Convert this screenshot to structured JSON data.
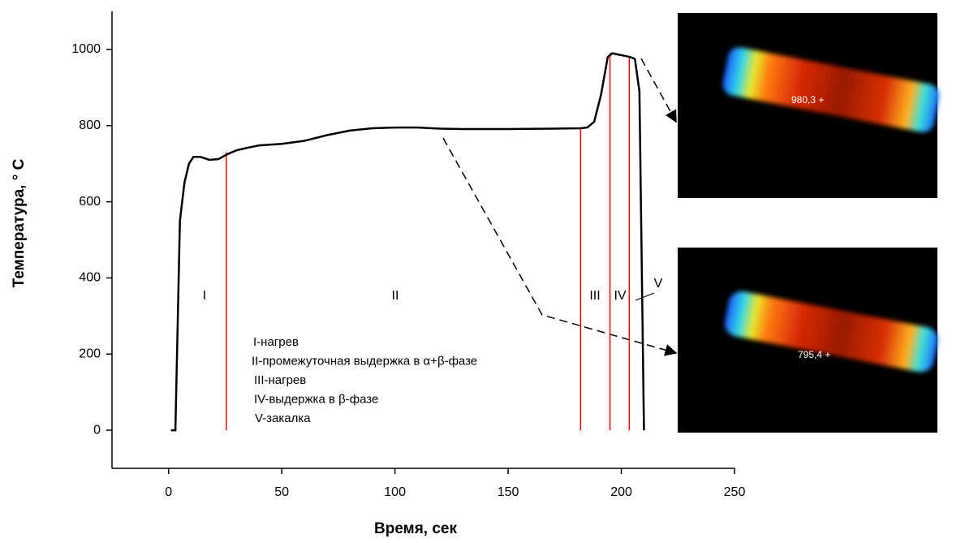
{
  "chart_data": {
    "type": "line",
    "xlabel": "Время, сек",
    "ylabel": "Температура, ° С",
    "xlim": [
      -25,
      250
    ],
    "xticks": [
      0,
      50,
      100,
      150,
      200,
      250
    ],
    "ylim": [
      -100,
      1100
    ],
    "yticks": [
      0,
      200,
      400,
      600,
      800,
      1000
    ],
    "color": "#000000",
    "x": [
      1,
      3,
      5,
      7,
      9,
      11,
      14,
      18,
      22,
      26,
      30,
      35,
      40,
      50,
      60,
      70,
      80,
      90,
      100,
      110,
      120,
      130,
      150,
      170,
      182,
      185,
      188,
      191,
      194,
      196,
      200,
      204,
      206,
      208,
      210
    ],
    "values": [
      0,
      0,
      550,
      650,
      700,
      718,
      718,
      710,
      712,
      725,
      735,
      742,
      748,
      752,
      760,
      775,
      787,
      793,
      795,
      795,
      792,
      791,
      791,
      792,
      793,
      795,
      810,
      880,
      980,
      990,
      985,
      980,
      975,
      890,
      0
    ],
    "markers": {
      "color": "#ff0000",
      "x": [
        25.5,
        182,
        195,
        203.5
      ],
      "top": [
        730,
        795,
        990,
        980
      ]
    },
    "phases": [
      "I",
      "II",
      "III",
      "IV",
      "V"
    ],
    "legend_lines": [
      "I-нагрев",
      "II-промежуточная выдержка в α+β-фазе",
      "III-нагрев",
      "IV-выдержка в β-фазе",
      "V-закалка"
    ],
    "insets": [
      {
        "label": "980,3 +"
      },
      {
        "label": "795,4 +"
      }
    ]
  }
}
